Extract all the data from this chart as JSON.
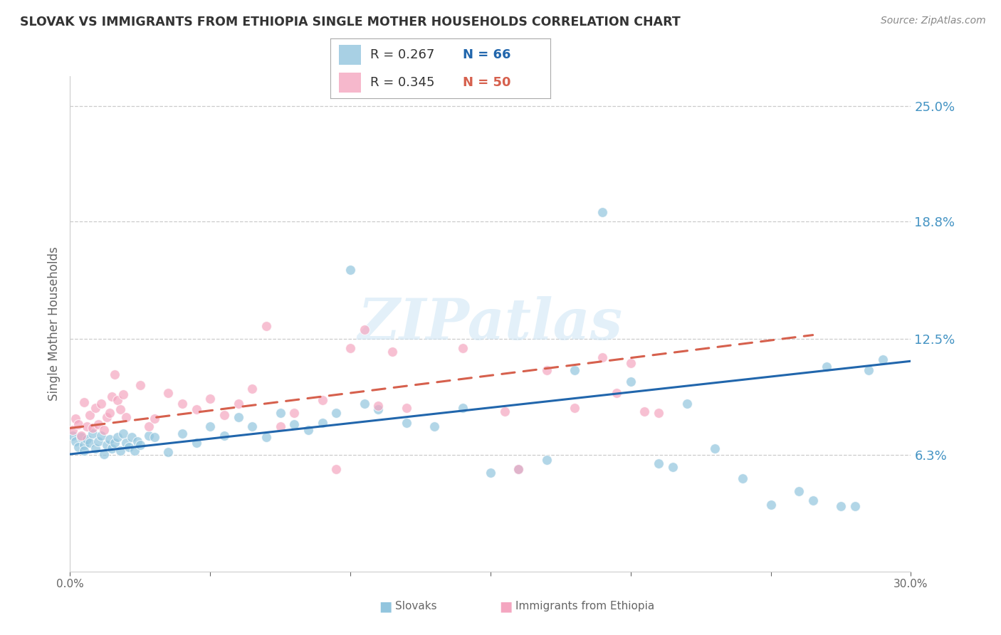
{
  "title": "SLOVAK VS IMMIGRANTS FROM ETHIOPIA SINGLE MOTHER HOUSEHOLDS CORRELATION CHART",
  "source": "Source: ZipAtlas.com",
  "ylabel": "Single Mother Households",
  "xlim": [
    0.0,
    0.3
  ],
  "ylim": [
    0.0,
    0.266
  ],
  "xticks": [
    0.0,
    0.05,
    0.1,
    0.15,
    0.2,
    0.25,
    0.3
  ],
  "xticklabels": [
    "0.0%",
    "",
    "",
    "",
    "",
    "",
    "30.0%"
  ],
  "ytick_positions": [
    0.0625,
    0.125,
    0.188,
    0.25
  ],
  "yticklabels": [
    "6.3%",
    "12.5%",
    "18.8%",
    "25.0%"
  ],
  "legend_blue_r": "R = 0.267",
  "legend_blue_n": "N = 66",
  "legend_pink_r": "R = 0.345",
  "legend_pink_n": "N = 50",
  "legend_label_blue": "Slovaks",
  "legend_label_pink": "Immigrants from Ethiopia",
  "blue_color": "#92c5de",
  "pink_color": "#f4a6c0",
  "blue_line_color": "#2166ac",
  "pink_line_color": "#d6604d",
  "watermark": "ZIPatlas",
  "background_color": "#ffffff",
  "grid_color": "#cccccc",
  "title_color": "#333333",
  "axis_label_color": "#666666",
  "ytick_color": "#4393c3",
  "xtick_color": "#666666",
  "blue_scatter_x": [
    0.001,
    0.002,
    0.003,
    0.004,
    0.005,
    0.005,
    0.006,
    0.007,
    0.008,
    0.009,
    0.01,
    0.011,
    0.012,
    0.013,
    0.014,
    0.015,
    0.016,
    0.017,
    0.018,
    0.019,
    0.02,
    0.021,
    0.022,
    0.023,
    0.024,
    0.025,
    0.028,
    0.03,
    0.035,
    0.04,
    0.045,
    0.05,
    0.055,
    0.06,
    0.065,
    0.07,
    0.075,
    0.08,
    0.085,
    0.09,
    0.095,
    0.1,
    0.105,
    0.11,
    0.12,
    0.13,
    0.14,
    0.15,
    0.16,
    0.17,
    0.18,
    0.19,
    0.2,
    0.21,
    0.215,
    0.22,
    0.23,
    0.24,
    0.25,
    0.26,
    0.265,
    0.27,
    0.275,
    0.28,
    0.285,
    0.29
  ],
  "blue_scatter_y": [
    0.073,
    0.07,
    0.067,
    0.072,
    0.068,
    0.065,
    0.071,
    0.069,
    0.074,
    0.066,
    0.07,
    0.073,
    0.063,
    0.068,
    0.071,
    0.066,
    0.069,
    0.072,
    0.065,
    0.074,
    0.069,
    0.067,
    0.072,
    0.065,
    0.07,
    0.068,
    0.073,
    0.072,
    0.064,
    0.074,
    0.069,
    0.078,
    0.073,
    0.083,
    0.078,
    0.072,
    0.085,
    0.079,
    0.076,
    0.08,
    0.085,
    0.162,
    0.09,
    0.087,
    0.08,
    0.078,
    0.088,
    0.053,
    0.055,
    0.06,
    0.108,
    0.193,
    0.102,
    0.058,
    0.056,
    0.09,
    0.066,
    0.05,
    0.036,
    0.043,
    0.038,
    0.11,
    0.035,
    0.035,
    0.108,
    0.114
  ],
  "pink_scatter_x": [
    0.001,
    0.002,
    0.003,
    0.004,
    0.005,
    0.006,
    0.007,
    0.008,
    0.009,
    0.01,
    0.011,
    0.012,
    0.013,
    0.014,
    0.015,
    0.016,
    0.017,
    0.018,
    0.019,
    0.02,
    0.025,
    0.028,
    0.03,
    0.035,
    0.04,
    0.045,
    0.05,
    0.055,
    0.06,
    0.065,
    0.07,
    0.075,
    0.08,
    0.09,
    0.095,
    0.1,
    0.105,
    0.11,
    0.115,
    0.12,
    0.14,
    0.155,
    0.16,
    0.17,
    0.18,
    0.19,
    0.195,
    0.2,
    0.205,
    0.21
  ],
  "pink_scatter_y": [
    0.076,
    0.082,
    0.079,
    0.073,
    0.091,
    0.078,
    0.084,
    0.077,
    0.088,
    0.079,
    0.09,
    0.076,
    0.083,
    0.085,
    0.094,
    0.106,
    0.092,
    0.087,
    0.095,
    0.083,
    0.1,
    0.078,
    0.082,
    0.096,
    0.09,
    0.087,
    0.093,
    0.084,
    0.09,
    0.098,
    0.132,
    0.078,
    0.085,
    0.092,
    0.055,
    0.12,
    0.13,
    0.089,
    0.118,
    0.088,
    0.12,
    0.086,
    0.055,
    0.108,
    0.088,
    0.115,
    0.096,
    0.112,
    0.086,
    0.085
  ],
  "blue_trend_x": [
    0.0,
    0.3
  ],
  "blue_trend_y": [
    0.063,
    0.113
  ],
  "pink_trend_x": [
    0.0,
    0.265
  ],
  "pink_trend_y": [
    0.077,
    0.127
  ]
}
